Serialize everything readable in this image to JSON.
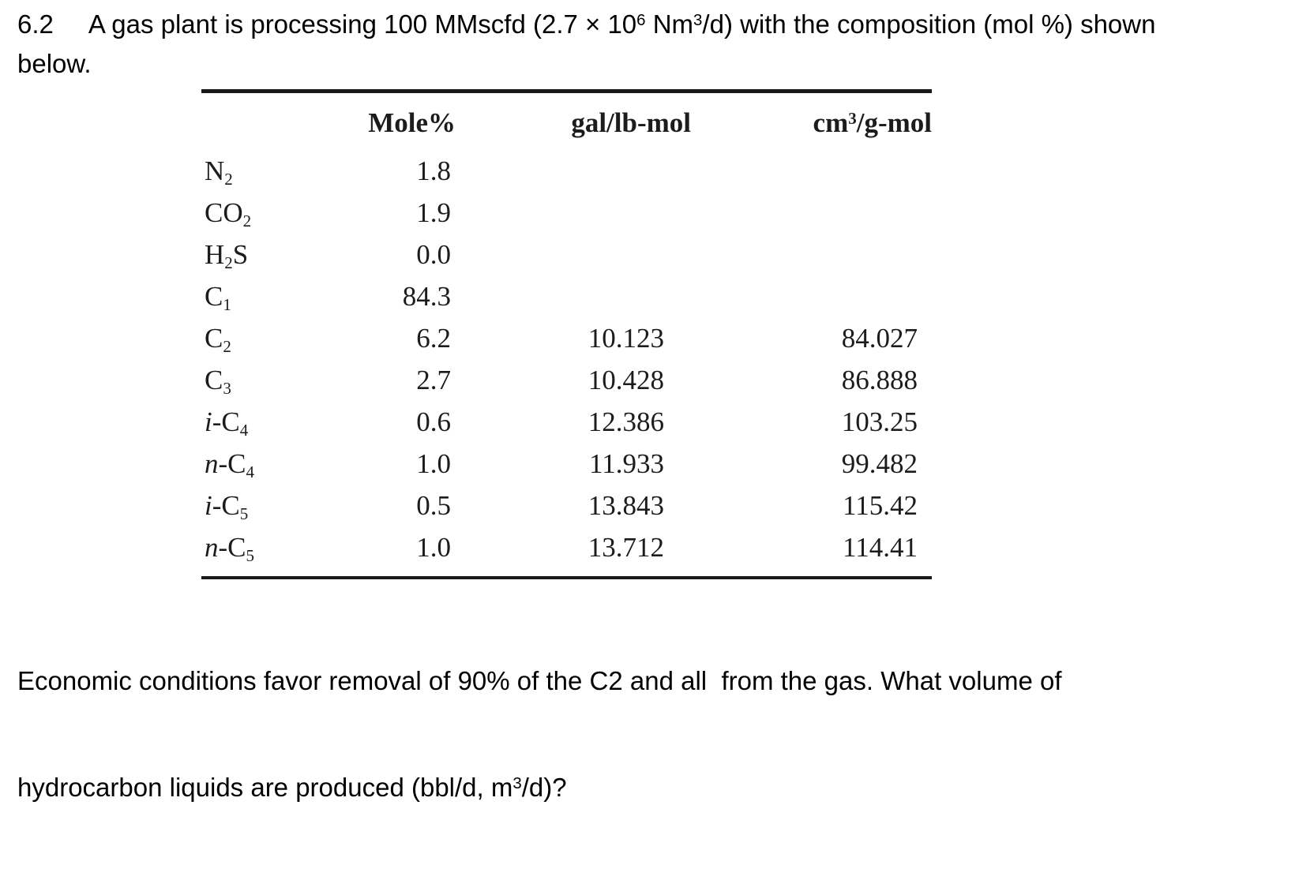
{
  "problem": {
    "number": "6.2",
    "line1_segments": [
      {
        "text": "A gas plant is processing 100 MMscfd (2.7 × 10"
      },
      {
        "sup": "6"
      },
      {
        "text": " Nm"
      },
      {
        "sup": "3"
      },
      {
        "text": "/d) with the composition (mol %) shown"
      }
    ],
    "line2": "below."
  },
  "table": {
    "headers": {
      "species": "",
      "mole": "Mole%",
      "gal": "gal/lb-mol",
      "cm3_parts": {
        "base": "cm",
        "sup": "3",
        "rest": "/g-mol"
      }
    },
    "rows": [
      {
        "species": {
          "italic": "",
          "base": "N",
          "sub": "2",
          "suffix": ""
        },
        "mole": "1.8",
        "gal": "",
        "cm3": ""
      },
      {
        "species": {
          "italic": "",
          "base": "CO",
          "sub": "2",
          "suffix": ""
        },
        "mole": "1.9",
        "gal": "",
        "cm3": ""
      },
      {
        "species": {
          "italic": "",
          "base": "H",
          "sub": "2",
          "suffix": "S"
        },
        "mole": "0.0",
        "gal": "",
        "cm3": ""
      },
      {
        "species": {
          "italic": "",
          "base": "C",
          "sub": "1",
          "suffix": ""
        },
        "mole": "84.3",
        "gal": "",
        "cm3": ""
      },
      {
        "species": {
          "italic": "",
          "base": "C",
          "sub": "2",
          "suffix": ""
        },
        "mole": "6.2",
        "gal": "10.123",
        "cm3": "84.027"
      },
      {
        "species": {
          "italic": "",
          "base": "C",
          "sub": "3",
          "suffix": ""
        },
        "mole": "2.7",
        "gal": "10.428",
        "cm3": "86.888"
      },
      {
        "species": {
          "italic": "i",
          "base": "-C",
          "sub": "4",
          "suffix": ""
        },
        "mole": "0.6",
        "gal": "12.386",
        "cm3": "103.25"
      },
      {
        "species": {
          "italic": "n",
          "base": "-C",
          "sub": "4",
          "suffix": ""
        },
        "mole": "1.0",
        "gal": "11.933",
        "cm3": "99.482"
      },
      {
        "species": {
          "italic": "i",
          "base": "-C",
          "sub": "5",
          "suffix": ""
        },
        "mole": "0.5",
        "gal": "13.843",
        "cm3": "115.42"
      },
      {
        "species": {
          "italic": "n",
          "base": "-C",
          "sub": "5",
          "suffix": ""
        },
        "mole": "1.0",
        "gal": "13.712",
        "cm3": "114.41"
      }
    ]
  },
  "question": {
    "line1": "Economic conditions favor removal of 90% of the C2 and all  from the gas. What volume of",
    "line2_segments": [
      {
        "text": "hydrocarbon liquids are produced (bbl/d, m"
      },
      {
        "sup": "3"
      },
      {
        "text": "/d)?"
      }
    ]
  },
  "colors": {
    "text": "#000000",
    "table_text": "#1c1c1c",
    "rule": "#1a1a1a",
    "background": "#ffffff"
  }
}
